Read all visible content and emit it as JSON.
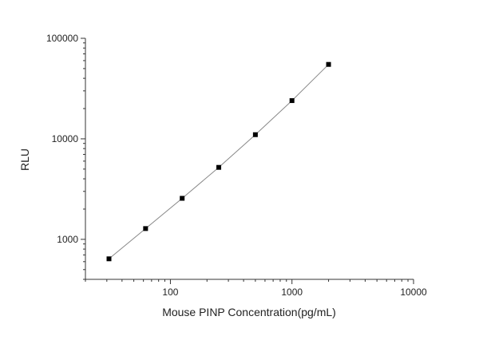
{
  "chart_data": {
    "type": "scatter",
    "x_label": "Mouse PINP Concentration(pg/mL)",
    "y_label": "RLU",
    "x": [
      31.25,
      62.5,
      125,
      250,
      500,
      1000,
      2000
    ],
    "series": [
      {
        "color": "#000000",
        "values": [
          640,
          1280,
          2560,
          5200,
          11000,
          24000,
          55000
        ]
      }
    ],
    "xlim": [
      20,
      10000
    ],
    "ylim": [
      400,
      100000
    ],
    "xticks": [
      100,
      1000,
      10000
    ],
    "yticks": [
      1000,
      10000,
      100000
    ],
    "xscale": "log",
    "yscale": "log",
    "grid": false,
    "line": true
  }
}
